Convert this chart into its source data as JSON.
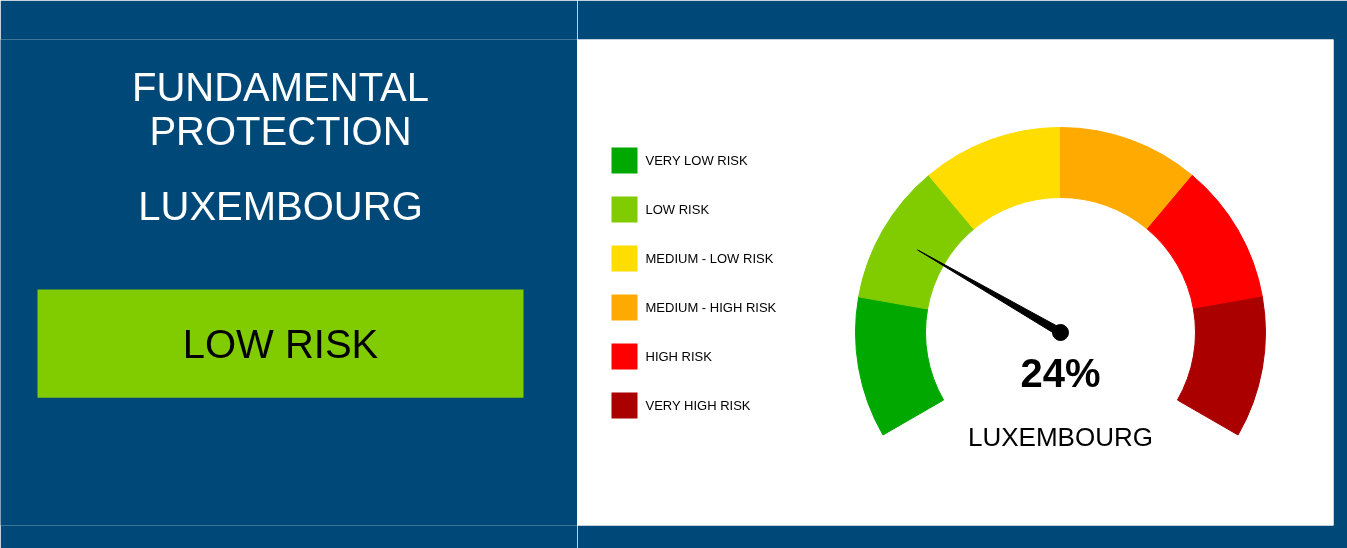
{
  "chart_data": [
    {
      "type": "other",
      "title": "FUNDAMENTAL PROTECTION",
      "subtitle": "LUXEMBOURG",
      "annotations": [
        "LOW RISK"
      ],
      "color": "#80cc00"
    },
    {
      "type": "donut",
      "categories": [
        "VERY LOW RISK",
        "LOW RISK",
        "MEDIUM - LOW RISK",
        "MEDIUM - HIGH RISK",
        "HIGH RISK",
        "VERY HIGH RISK"
      ],
      "values": [
        16.67,
        16.67,
        16.66,
        16.67,
        16.67,
        16.66
      ],
      "colors": [
        "#00a800",
        "#80cc00",
        "#ffdd00",
        "#ffaa00",
        "#ff0000",
        "#aa0000"
      ],
      "needle": "LOW RISK",
      "legend": "left",
      "annotations": [
        "24%",
        "LUXEMBOURG"
      ]
    }
  ]
}
